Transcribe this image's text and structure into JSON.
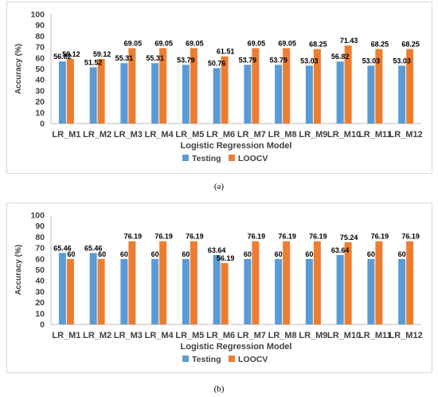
{
  "chart_data": [
    {
      "type": "bar",
      "categories": [
        "LR_M1",
        "LR_M2",
        "LR_M3",
        "LR_M4",
        "LR_M5",
        "LR_M6",
        "LR_M7",
        "LR_M8",
        "LR_M9",
        "LR_M10",
        "LR_M11",
        "LR_M12"
      ],
      "series": [
        {
          "name": "Testing",
          "values": [
            56.82,
            51.52,
            55.31,
            55.31,
            53.79,
            50.76,
            53.79,
            53.79,
            53.03,
            56.82,
            53.03,
            53.03
          ]
        },
        {
          "name": "LOOCV",
          "values": [
            59.12,
            59.12,
            69.05,
            69.05,
            69.05,
            61.51,
            69.05,
            69.05,
            68.25,
            71.43,
            68.25,
            68.25
          ]
        }
      ],
      "labels": {
        "Testing": [
          "56.82",
          "51.52",
          "55.31",
          "55.31",
          "53.79",
          "50.76",
          "53.79",
          "53.79",
          "53.03",
          "56.82",
          "53.03",
          "53.03"
        ],
        "LOOCV": [
          "59.12",
          "59.12",
          "69.05",
          "69.05",
          "69.05",
          "61.51",
          "69.05",
          "69.05",
          "68.25",
          "71.43",
          "68.25",
          "68.25"
        ]
      },
      "xlabel": "Logistic Regression Model",
      "ylabel": "Accuracy (%)",
      "ylim": [
        0,
        100
      ],
      "yticks": [
        0,
        10,
        20,
        30,
        40,
        50,
        60,
        70,
        80,
        90,
        100
      ],
      "grid": false,
      "legend": "bottom",
      "colors": {
        "Testing": "#5b9bd5",
        "LOOCV": "#ed7d31"
      },
      "caption": "(a)"
    },
    {
      "type": "bar",
      "categories": [
        "LR_M1",
        "LR_M2",
        "LR_M3",
        "LR_M4",
        "LR_M5",
        "LR_M6",
        "LR_M7",
        "LR_M8",
        "LR_M9",
        "LR_M10",
        "LR_M11",
        "LR_M12"
      ],
      "series": [
        {
          "name": "Testing",
          "values": [
            65.46,
            65.46,
            60,
            60,
            60,
            63.64,
            60,
            60,
            60,
            63.64,
            60,
            60
          ]
        },
        {
          "name": "LOOCV",
          "values": [
            60,
            60,
            76.19,
            76.19,
            76.19,
            56.19,
            76.19,
            76.19,
            76.19,
            75.24,
            76.19,
            76.19
          ]
        }
      ],
      "labels": {
        "Testing": [
          "65.46",
          "65.46",
          "60",
          "60",
          "60",
          "63.64",
          "60",
          "60",
          "60",
          "63.64",
          "60",
          "60"
        ],
        "LOOCV": [
          "60",
          "60",
          "76.19",
          "76.19",
          "76.19",
          "56.19",
          "76.19",
          "76.19",
          "76.19",
          "75.24",
          "76.19",
          "76.19"
        ]
      },
      "xlabel": "Logistic Regression Model",
      "ylabel": "Accuracy (%)",
      "ylim": [
        0,
        100
      ],
      "yticks": [
        0,
        10,
        20,
        30,
        40,
        50,
        60,
        70,
        80,
        90,
        100
      ],
      "grid": false,
      "legend": "bottom",
      "colors": {
        "Testing": "#5b9bd5",
        "LOOCV": "#ed7d31"
      },
      "caption": "(b)"
    }
  ]
}
